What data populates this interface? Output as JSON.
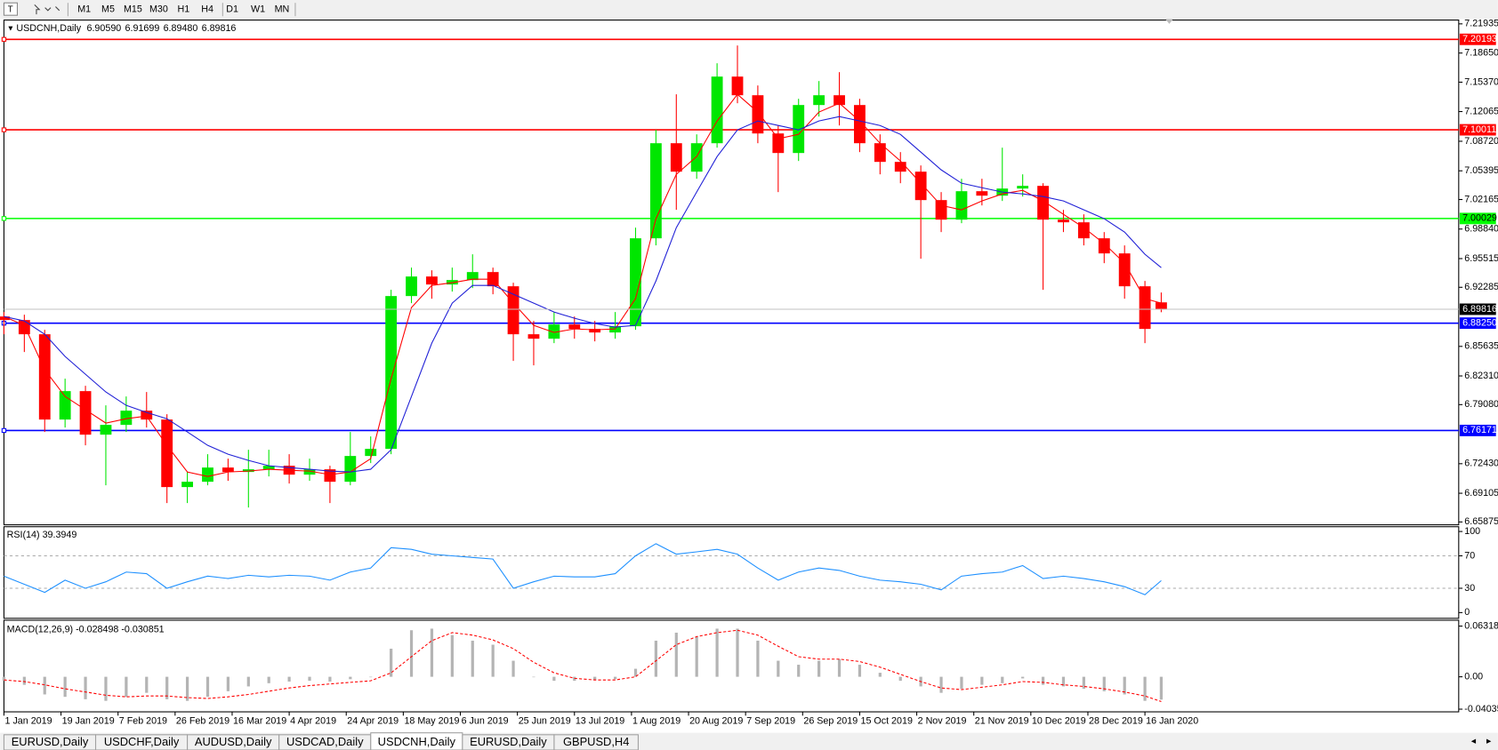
{
  "toolbar": {
    "timeframes": [
      "M1",
      "M5",
      "M15",
      "M30",
      "H1",
      "H4",
      "D1",
      "W1",
      "MN"
    ]
  },
  "tabs": {
    "items": [
      "EURUSD,Daily",
      "USDCHF,Daily",
      "AUDUSD,Daily",
      "USDCAD,Daily",
      "USDCNH,Daily",
      "EURUSD,Daily",
      "GBPUSD,H4"
    ],
    "active": 4
  },
  "chart_data": {
    "type": "candlestick",
    "header": {
      "symbol": "USDCNH,Daily",
      "ohlc": [
        "6.90590",
        "6.91699",
        "6.89480",
        "6.89816"
      ]
    },
    "x": [
      0,
      5,
      10,
      15,
      20,
      25,
      30,
      35,
      40,
      45,
      50,
      55,
      60,
      65,
      70,
      75,
      80,
      85,
      90,
      95,
      100,
      105,
      110,
      115,
      120,
      125,
      130,
      135,
      140,
      145,
      150,
      155,
      160,
      165,
      170,
      175,
      180,
      185,
      190,
      195,
      200,
      205,
      210,
      215,
      220,
      225,
      230,
      235,
      240,
      245,
      250,
      255,
      260,
      265,
      270,
      275,
      280,
      284
    ],
    "xlim": [
      0,
      357
    ],
    "xticks": [
      {
        "value": 0,
        "label": "1 Jan 2019"
      },
      {
        "value": 14,
        "label": "19 Jan 2019"
      },
      {
        "value": 28,
        "label": "7 Feb 2019"
      },
      {
        "value": 42,
        "label": "26 Feb 2019"
      },
      {
        "value": 56,
        "label": "16 Mar 2019"
      },
      {
        "value": 70,
        "label": "4 Apr 2019"
      },
      {
        "value": 84,
        "label": "24 Apr 2019"
      },
      {
        "value": 98,
        "label": "18 May 2019"
      },
      {
        "value": 112,
        "label": "6 Jun 2019"
      },
      {
        "value": 126,
        "label": "25 Jun 2019"
      },
      {
        "value": 140,
        "label": "13 Jul 2019"
      },
      {
        "value": 154,
        "label": "1 Aug 2019"
      },
      {
        "value": 168,
        "label": "20 Aug 2019"
      },
      {
        "value": 182,
        "label": "7 Sep 2019"
      },
      {
        "value": 196,
        "label": "26 Sep 2019"
      },
      {
        "value": 210,
        "label": "15 Oct 2019"
      },
      {
        "value": 224,
        "label": "2 Nov 2019"
      },
      {
        "value": 238,
        "label": "21 Nov 2019"
      },
      {
        "value": 252,
        "label": "10 Dec 2019"
      },
      {
        "value": 266,
        "label": "28 Dec 2019"
      },
      {
        "value": 280,
        "label": "16 Jan 2020"
      }
    ],
    "ylim": [
      6.65875,
      7.21935
    ],
    "yticks": [
      7.21935,
      {
        "value": 7.1865,
        "label": "7.18650"
      },
      {
        "value": 7.1537,
        "label": "7.15370"
      },
      7.12065,
      {
        "value": 7.0872,
        "label": "7.08720"
      },
      7.05395,
      7.02165,
      {
        "value": 6.9884,
        "label": "6.98840"
      },
      6.95515,
      6.92285,
      6.85635,
      {
        "value": 6.8231,
        "label": "6.82310"
      },
      {
        "value": 6.7908,
        "label": "6.79080"
      },
      {
        "value": 6.7243,
        "label": "6.72430"
      },
      6.69105,
      6.65875
    ],
    "open": [
      6.89,
      6.886,
      6.87,
      6.774,
      6.806,
      6.757,
      6.768,
      6.784,
      6.774,
      6.698,
      6.704,
      6.72,
      6.715,
      6.718,
      6.722,
      6.712,
      6.718,
      6.704,
      6.733,
      6.741,
      6.913,
      6.935,
      6.926,
      6.931,
      6.94,
      6.924,
      6.87,
      6.865,
      6.881,
      6.876,
      6.872,
      6.879,
      6.978,
      7.085,
      7.053,
      7.085,
      7.16,
      7.139,
      7.096,
      7.074,
      7.128,
      7.139,
      7.128,
      7.085,
      7.064,
      7.053,
      7.021,
      6.999,
      7.031,
      7.026,
      7.034,
      7.037,
      6.999,
      6.996,
      6.978,
      6.961,
      6.924,
      6.9059
    ],
    "high": [
      6.895,
      6.892,
      6.875,
      6.82,
      6.812,
      6.79,
      6.8,
      6.805,
      6.78,
      6.715,
      6.735,
      6.73,
      6.74,
      6.74,
      6.735,
      6.73,
      6.722,
      6.76,
      6.755,
      6.92,
      6.945,
      6.942,
      6.945,
      6.96,
      6.945,
      6.928,
      6.885,
      6.895,
      6.89,
      6.885,
      6.895,
      6.99,
      7.1,
      7.14,
      7.095,
      7.175,
      7.195,
      7.15,
      7.105,
      7.135,
      7.155,
      7.165,
      7.135,
      7.095,
      7.075,
      7.06,
      7.03,
      7.045,
      7.045,
      7.08,
      7.05,
      7.04,
      7.01,
      7.005,
      6.985,
      6.97,
      6.93,
      6.91699
    ],
    "low": [
      6.87,
      6.85,
      6.76,
      6.765,
      6.745,
      6.7,
      6.76,
      6.765,
      6.68,
      6.68,
      6.7,
      6.705,
      6.675,
      6.71,
      6.702,
      6.705,
      6.68,
      6.7,
      6.725,
      6.735,
      6.905,
      6.91,
      6.918,
      6.922,
      6.915,
      6.84,
      6.835,
      6.86,
      6.865,
      6.862,
      6.865,
      6.875,
      6.97,
      7.01,
      7.045,
      7.08,
      7.13,
      7.085,
      7.03,
      7.065,
      7.115,
      7.105,
      7.075,
      7.05,
      7.04,
      6.955,
      6.985,
      6.995,
      7.015,
      7.02,
      7.025,
      6.92,
      6.985,
      6.97,
      6.95,
      6.91,
      6.86,
      6.8948
    ],
    "close": [
      6.886,
      6.87,
      6.774,
      6.806,
      6.757,
      6.768,
      6.784,
      6.774,
      6.698,
      6.704,
      6.72,
      6.715,
      6.718,
      6.722,
      6.712,
      6.718,
      6.704,
      6.733,
      6.741,
      6.913,
      6.935,
      6.926,
      6.931,
      6.94,
      6.924,
      6.87,
      6.865,
      6.881,
      6.876,
      6.872,
      6.879,
      6.978,
      7.085,
      7.053,
      7.085,
      7.16,
      7.139,
      7.096,
      7.074,
      7.128,
      7.139,
      7.128,
      7.085,
      7.064,
      7.053,
      7.021,
      6.999,
      7.031,
      7.026,
      7.034,
      7.037,
      6.999,
      6.996,
      6.978,
      6.961,
      6.924,
      6.876,
      6.89816
    ],
    "up_color": "#00e600",
    "down_color": "#ff0000",
    "moving_averages": [
      {
        "color": "#ff0000",
        "values": [
          6.89,
          6.88,
          6.83,
          6.8,
          6.785,
          6.77,
          6.775,
          6.778,
          6.745,
          6.715,
          6.71,
          6.715,
          6.716,
          6.718,
          6.717,
          6.716,
          6.712,
          6.715,
          6.73,
          6.82,
          6.9,
          6.925,
          6.928,
          6.932,
          6.932,
          6.905,
          6.88,
          6.872,
          6.876,
          6.875,
          6.876,
          6.91,
          7.0,
          7.05,
          7.07,
          7.11,
          7.14,
          7.12,
          7.09,
          7.095,
          7.12,
          7.13,
          7.11,
          7.085,
          7.065,
          7.04,
          7.015,
          7.01,
          7.02,
          7.028,
          7.032,
          7.02,
          7.005,
          6.99,
          6.972,
          6.95,
          6.91,
          6.905
        ]
      },
      {
        "color": "#1f1fd6",
        "values": [
          6.89,
          6.885,
          6.87,
          6.845,
          6.825,
          6.805,
          6.79,
          6.782,
          6.775,
          6.76,
          6.745,
          6.735,
          6.728,
          6.722,
          6.72,
          6.718,
          6.716,
          6.715,
          6.718,
          6.74,
          6.8,
          6.86,
          6.905,
          6.925,
          6.925,
          6.915,
          6.905,
          6.895,
          6.888,
          6.882,
          6.878,
          6.88,
          6.93,
          6.99,
          7.03,
          7.07,
          7.1,
          7.11,
          7.105,
          7.1,
          7.11,
          7.115,
          7.11,
          7.105,
          7.095,
          7.075,
          7.055,
          7.04,
          7.035,
          7.03,
          7.028,
          7.025,
          7.02,
          7.01,
          7.0,
          6.985,
          6.96,
          6.945
        ]
      }
    ],
    "levels": [
      {
        "value": 7.20193,
        "color": "#ff0000"
      },
      {
        "value": 7.10011,
        "color": "#ff0000"
      },
      {
        "value": 7.00029,
        "color": "#00ff00"
      },
      {
        "value": 6.8825,
        "label": "6.88250",
        "color": "#0000ff"
      },
      {
        "value": 6.76171,
        "color": "#0000ff"
      }
    ],
    "rsi": {
      "title": "RSI(14) 39.3949",
      "ylim": [
        0,
        100
      ],
      "yticks": [
        100,
        70,
        30,
        0
      ],
      "levels": [
        70,
        30
      ],
      "color": "#1e90ff",
      "values": [
        45,
        35,
        25,
        40,
        30,
        38,
        50,
        48,
        30,
        38,
        45,
        42,
        46,
        44,
        46,
        45,
        40,
        50,
        55,
        80,
        78,
        72,
        70,
        68,
        66,
        30,
        38,
        45,
        44,
        44,
        48,
        70,
        85,
        72,
        75,
        78,
        72,
        55,
        40,
        50,
        55,
        52,
        45,
        40,
        38,
        35,
        28,
        45,
        48,
        50,
        58,
        42,
        45,
        42,
        38,
        32,
        22,
        39.3949
      ]
    },
    "macd": {
      "title": "MACD(12,26,9) -0.028498 -0.030851",
      "ylim": [
        -0.0437,
        0.0705
      ],
      "yticks": [
        0.063184,
        {
          "value": 0,
          "label": "0.00"
        },
        -0.040355
      ],
      "hist_color": "#b4b4b4",
      "signal_color": "#ff0000",
      "values": [
        -0.005,
        -0.01,
        -0.022,
        -0.025,
        -0.028,
        -0.03,
        -0.025,
        -0.02,
        -0.028,
        -0.03,
        -0.025,
        -0.018,
        -0.012,
        -0.008,
        -0.006,
        -0.005,
        -0.006,
        -0.003,
        0.0,
        0.035,
        0.058,
        0.06,
        0.052,
        0.045,
        0.04,
        0.02,
        0.0,
        -0.005,
        -0.005,
        -0.004,
        -0.003,
        0.01,
        0.045,
        0.055,
        0.05,
        0.06,
        0.06,
        0.045,
        0.02,
        0.015,
        0.02,
        0.022,
        0.015,
        0.005,
        -0.005,
        -0.012,
        -0.02,
        -0.015,
        -0.01,
        -0.008,
        -0.002,
        -0.01,
        -0.012,
        -0.015,
        -0.018,
        -0.022,
        -0.03,
        -0.028498
      ],
      "signal": [
        -0.004,
        -0.006,
        -0.01,
        -0.015,
        -0.019,
        -0.023,
        -0.025,
        -0.024,
        -0.024,
        -0.026,
        -0.027,
        -0.025,
        -0.022,
        -0.018,
        -0.014,
        -0.011,
        -0.009,
        -0.007,
        -0.005,
        0.005,
        0.025,
        0.045,
        0.055,
        0.052,
        0.046,
        0.035,
        0.018,
        0.005,
        -0.002,
        -0.004,
        -0.004,
        0.0,
        0.02,
        0.04,
        0.05,
        0.055,
        0.058,
        0.052,
        0.038,
        0.025,
        0.022,
        0.022,
        0.019,
        0.012,
        0.003,
        -0.006,
        -0.014,
        -0.016,
        -0.013,
        -0.01,
        -0.006,
        -0.007,
        -0.01,
        -0.012,
        -0.015,
        -0.019,
        -0.024,
        -0.030851
      ]
    }
  }
}
